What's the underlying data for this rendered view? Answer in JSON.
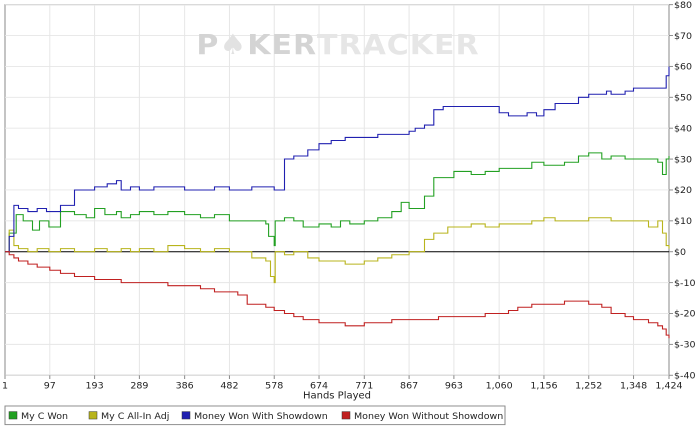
{
  "watermark": {
    "part1": "P",
    "part2": "KER",
    "part3": "TRACKER"
  },
  "chart_data": {
    "type": "line",
    "xlabel": "Hands Played",
    "ylabel": "",
    "x_ticks": [
      "1",
      "97",
      "193",
      "289",
      "386",
      "482",
      "578",
      "674",
      "771",
      "867",
      "963",
      "1,060",
      "1,156",
      "1,252",
      "1,348",
      "1,424"
    ],
    "x_tick_values": [
      1,
      97,
      193,
      289,
      386,
      482,
      578,
      674,
      771,
      867,
      963,
      1060,
      1156,
      1252,
      1348,
      1424
    ],
    "y_ticks": [
      "$80",
      "$70",
      "$60",
      "$50",
      "$40",
      "$30",
      "$20",
      "$10",
      "$0",
      "$-10",
      "$-20",
      "$-30",
      "$-40"
    ],
    "y_tick_values": [
      80,
      70,
      60,
      50,
      40,
      30,
      20,
      10,
      0,
      -10,
      -20,
      -30,
      -40
    ],
    "xlim": [
      1,
      1424
    ],
    "ylim": [
      -40,
      80
    ],
    "y_axis_side": "right",
    "grid": true,
    "zero_line": true,
    "legend_position": "bottom",
    "series": [
      {
        "name": "My C Won",
        "color": "#22a022",
        "x": [
          1,
          10,
          25,
          40,
          60,
          75,
          95,
          120,
          150,
          175,
          193,
          215,
          240,
          250,
          270,
          289,
          320,
          350,
          386,
          420,
          450,
          482,
          520,
          560,
          566,
          578,
          580,
          600,
          620,
          640,
          674,
          700,
          720,
          740,
          771,
          800,
          830,
          850,
          867,
          900,
          920,
          963,
          1000,
          1030,
          1060,
          1100,
          1130,
          1156,
          1180,
          1200,
          1230,
          1252,
          1280,
          1300,
          1330,
          1348,
          1370,
          1400,
          1410,
          1418,
          1424
        ],
        "values": [
          0,
          6,
          12,
          10,
          7,
          10,
          8,
          13,
          12,
          11,
          14,
          12,
          13,
          11,
          12,
          13,
          12,
          13,
          12,
          11,
          12,
          10,
          10,
          9,
          5,
          2,
          10,
          11,
          10,
          8,
          9,
          8,
          10,
          9,
          10,
          11,
          13,
          16,
          14,
          18,
          24,
          26,
          25,
          26,
          27,
          27,
          29,
          28,
          28,
          29,
          31,
          32,
          30,
          31,
          30,
          30,
          30,
          29,
          25,
          30,
          31
        ]
      },
      {
        "name": "My C All-In Adj",
        "color": "#b8b41c",
        "x": [
          1,
          10,
          20,
          30,
          50,
          70,
          95,
          120,
          150,
          193,
          220,
          250,
          270,
          289,
          320,
          350,
          386,
          420,
          450,
          482,
          500,
          530,
          560,
          570,
          578,
          580,
          600,
          620,
          650,
          674,
          700,
          730,
          771,
          800,
          830,
          867,
          900,
          920,
          950,
          963,
          1000,
          1030,
          1060,
          1100,
          1130,
          1156,
          1180,
          1220,
          1252,
          1280,
          1300,
          1348,
          1380,
          1400,
          1410,
          1418,
          1424
        ],
        "values": [
          0,
          7,
          2,
          1,
          0,
          1,
          0,
          1,
          0,
          1,
          0,
          1,
          0,
          1,
          0,
          2,
          1,
          0,
          1,
          0,
          0,
          -2,
          -3,
          -8,
          -10,
          0,
          -1,
          0,
          -2,
          -3,
          -3,
          -4,
          -3,
          -2,
          -1,
          0,
          4,
          6,
          8,
          8,
          9,
          8,
          9,
          9,
          10,
          11,
          10,
          10,
          11,
          11,
          10,
          10,
          8,
          10,
          6,
          2,
          1
        ]
      },
      {
        "name": "Money Won With Showdown",
        "color": "#2020b0",
        "x": [
          1,
          10,
          20,
          30,
          50,
          70,
          90,
          120,
          150,
          193,
          220,
          240,
          250,
          270,
          289,
          320,
          386,
          450,
          482,
          530,
          560,
          578,
          590,
          600,
          620,
          650,
          674,
          700,
          730,
          771,
          800,
          830,
          867,
          880,
          900,
          920,
          940,
          963,
          1000,
          1040,
          1060,
          1080,
          1100,
          1120,
          1140,
          1156,
          1180,
          1200,
          1230,
          1252,
          1270,
          1290,
          1300,
          1330,
          1348,
          1380,
          1400,
          1410,
          1418,
          1424
        ],
        "values": [
          0,
          5,
          15,
          14,
          13,
          14,
          13,
          15,
          20,
          21,
          22,
          23,
          20,
          21,
          20,
          21,
          20,
          21,
          20,
          21,
          21,
          20,
          20,
          30,
          31,
          33,
          35,
          36,
          37,
          37,
          38,
          38,
          39,
          40,
          41,
          46,
          47,
          47,
          47,
          47,
          45,
          44,
          44,
          45,
          44,
          46,
          48,
          48,
          50,
          51,
          51,
          52,
          51,
          52,
          53,
          53,
          53,
          53,
          57,
          60
        ]
      },
      {
        "name": "Money Won Without Showdown",
        "color": "#c02020",
        "x": [
          1,
          10,
          20,
          30,
          50,
          70,
          97,
          120,
          150,
          193,
          220,
          250,
          289,
          320,
          350,
          386,
          420,
          450,
          482,
          500,
          520,
          560,
          578,
          600,
          620,
          640,
          674,
          700,
          730,
          771,
          800,
          830,
          867,
          900,
          930,
          963,
          1000,
          1030,
          1060,
          1080,
          1100,
          1130,
          1156,
          1180,
          1200,
          1230,
          1252,
          1280,
          1300,
          1330,
          1348,
          1380,
          1400,
          1410,
          1418,
          1424
        ],
        "values": [
          0,
          -1,
          -2,
          -3,
          -4,
          -5,
          -6,
          -7,
          -8,
          -9,
          -9,
          -10,
          -10,
          -10,
          -11,
          -11,
          -12,
          -13,
          -13,
          -14,
          -17,
          -18,
          -19,
          -20,
          -21,
          -22,
          -23,
          -23,
          -24,
          -23,
          -23,
          -22,
          -22,
          -22,
          -21,
          -21,
          -21,
          -20,
          -20,
          -19,
          -18,
          -17,
          -17,
          -17,
          -16,
          -16,
          -17,
          -18,
          -20,
          -21,
          -22,
          -23,
          -24,
          -25,
          -27,
          -28
        ]
      }
    ]
  }
}
